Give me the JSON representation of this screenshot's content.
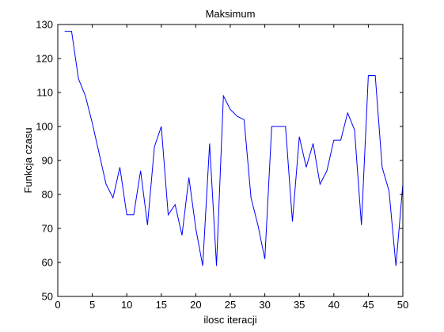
{
  "chart_data": {
    "type": "line",
    "title": "Maksimum",
    "xlabel": "ilosc iteracji",
    "ylabel": "Funkcja czasu",
    "xlim": [
      0,
      50
    ],
    "ylim": [
      50,
      130
    ],
    "xticks": [
      0,
      5,
      10,
      15,
      20,
      25,
      30,
      35,
      40,
      45,
      50
    ],
    "yticks": [
      50,
      60,
      70,
      80,
      90,
      100,
      110,
      120,
      130
    ],
    "grid": false,
    "series": [
      {
        "color": "#0000ff",
        "x": [
          1,
          2,
          3,
          4,
          5,
          6,
          7,
          8,
          9,
          10,
          11,
          12,
          13,
          14,
          15,
          16,
          17,
          18,
          19,
          20,
          21,
          22,
          23,
          24,
          25,
          26,
          27,
          28,
          29,
          30,
          31,
          32,
          33,
          34,
          35,
          36,
          37,
          38,
          39,
          40,
          41,
          42,
          43,
          44,
          45,
          46,
          47,
          48,
          49,
          50
        ],
        "y": [
          128,
          128,
          114,
          109,
          101,
          92,
          83,
          79,
          88,
          74,
          74,
          87,
          71,
          94,
          100,
          74,
          77,
          68,
          85,
          70,
          59,
          95,
          59,
          109,
          105,
          103,
          102,
          79,
          71,
          61,
          100,
          100,
          100,
          72,
          97,
          88,
          95,
          83,
          87,
          96,
          96,
          104,
          99,
          71,
          115,
          115,
          88,
          81,
          59,
          83
        ]
      }
    ]
  }
}
